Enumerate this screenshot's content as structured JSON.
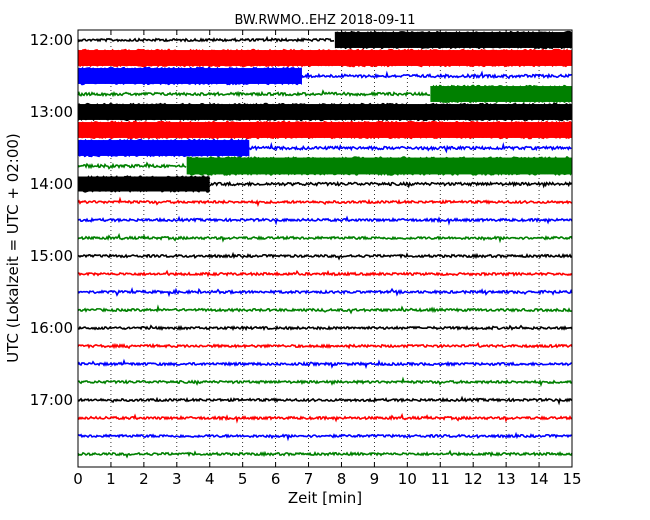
{
  "chart_data": {
    "type": "line",
    "title": "BW.RWMO..EHZ 2018-09-11",
    "xlabel": "Zeit  [min]",
    "ylabel": "UTC (Lokalzeit = UTC + 02:00)",
    "xlim": [
      0,
      15
    ],
    "x_ticks": [
      0,
      1,
      2,
      3,
      4,
      5,
      6,
      7,
      8,
      9,
      10,
      11,
      12,
      13,
      14,
      15
    ],
    "y_tick_labels": [
      "12:00",
      "13:00",
      "14:00",
      "15:00",
      "16:00",
      "17:00"
    ],
    "grid": "vertical dotted",
    "trace_interval_minutes": 15,
    "trace_colors": [
      "#000000",
      "#ff0000",
      "#0000ff",
      "#008000"
    ],
    "traces": [
      {
        "start": "12:00",
        "color": "#000000",
        "amplitude_segments": [
          {
            "from": 0,
            "to": 7.8,
            "amp": 0.12
          },
          {
            "from": 7.8,
            "to": 15,
            "amp": 0.85
          }
        ]
      },
      {
        "start": "12:15",
        "color": "#ff0000",
        "amplitude_segments": [
          {
            "from": 0,
            "to": 15,
            "amp": 0.85
          }
        ]
      },
      {
        "start": "12:30",
        "color": "#0000ff",
        "amplitude_segments": [
          {
            "from": 0,
            "to": 6.8,
            "amp": 0.85
          },
          {
            "from": 6.8,
            "to": 15,
            "amp": 0.15
          }
        ]
      },
      {
        "start": "12:45",
        "color": "#008000",
        "amplitude_segments": [
          {
            "from": 0,
            "to": 10.7,
            "amp": 0.15
          },
          {
            "from": 10.7,
            "to": 15,
            "amp": 0.85
          }
        ]
      },
      {
        "start": "13:00",
        "color": "#000000",
        "amplitude_segments": [
          {
            "from": 0,
            "to": 15,
            "amp": 0.85
          }
        ]
      },
      {
        "start": "13:15",
        "color": "#ff0000",
        "amplitude_segments": [
          {
            "from": 0,
            "to": 15,
            "amp": 0.85
          }
        ]
      },
      {
        "start": "13:30",
        "color": "#0000ff",
        "amplitude_segments": [
          {
            "from": 0,
            "to": 5.2,
            "amp": 0.85
          },
          {
            "from": 5.2,
            "to": 15,
            "amp": 0.15
          }
        ]
      },
      {
        "start": "13:45",
        "color": "#008000",
        "amplitude_segments": [
          {
            "from": 0,
            "to": 3.3,
            "amp": 0.15
          },
          {
            "from": 3.3,
            "to": 15,
            "amp": 0.9
          }
        ]
      },
      {
        "start": "14:00",
        "color": "#000000",
        "amplitude_segments": [
          {
            "from": 0,
            "to": 4.0,
            "amp": 0.8
          },
          {
            "from": 4.0,
            "to": 15,
            "amp": 0.15
          }
        ]
      },
      {
        "start": "14:15",
        "color": "#ff0000",
        "amplitude_segments": [
          {
            "from": 0,
            "to": 15,
            "amp": 0.12
          }
        ]
      },
      {
        "start": "14:30",
        "color": "#0000ff",
        "amplitude_segments": [
          {
            "from": 0,
            "to": 15,
            "amp": 0.12
          }
        ]
      },
      {
        "start": "14:45",
        "color": "#008000",
        "amplitude_segments": [
          {
            "from": 0,
            "to": 15,
            "amp": 0.12
          }
        ]
      },
      {
        "start": "15:00",
        "color": "#000000",
        "amplitude_segments": [
          {
            "from": 0,
            "to": 15,
            "amp": 0.12
          }
        ]
      },
      {
        "start": "15:15",
        "color": "#ff0000",
        "amplitude_segments": [
          {
            "from": 0,
            "to": 15,
            "amp": 0.1
          }
        ]
      },
      {
        "start": "15:30",
        "color": "#0000ff",
        "amplitude_segments": [
          {
            "from": 0,
            "to": 15,
            "amp": 0.12
          }
        ]
      },
      {
        "start": "15:45",
        "color": "#008000",
        "amplitude_segments": [
          {
            "from": 0,
            "to": 15,
            "amp": 0.1
          }
        ]
      },
      {
        "start": "16:00",
        "color": "#000000",
        "amplitude_segments": [
          {
            "from": 0,
            "to": 15,
            "amp": 0.1
          }
        ]
      },
      {
        "start": "16:15",
        "color": "#ff0000",
        "amplitude_segments": [
          {
            "from": 0,
            "to": 15,
            "amp": 0.08
          }
        ]
      },
      {
        "start": "16:30",
        "color": "#0000ff",
        "amplitude_segments": [
          {
            "from": 0,
            "to": 15,
            "amp": 0.08
          }
        ]
      },
      {
        "start": "16:45",
        "color": "#008000",
        "amplitude_segments": [
          {
            "from": 0,
            "to": 15,
            "amp": 0.08
          }
        ]
      },
      {
        "start": "17:00",
        "color": "#000000",
        "amplitude_segments": [
          {
            "from": 0,
            "to": 15,
            "amp": 0.08
          }
        ]
      },
      {
        "start": "17:15",
        "color": "#ff0000",
        "amplitude_segments": [
          {
            "from": 0,
            "to": 15,
            "amp": 0.08
          }
        ]
      },
      {
        "start": "17:30",
        "color": "#0000ff",
        "amplitude_segments": [
          {
            "from": 0,
            "to": 15,
            "amp": 0.08
          }
        ]
      },
      {
        "start": "17:45",
        "color": "#008000",
        "amplitude_segments": [
          {
            "from": 0,
            "to": 15,
            "amp": 0.08
          }
        ]
      }
    ]
  }
}
